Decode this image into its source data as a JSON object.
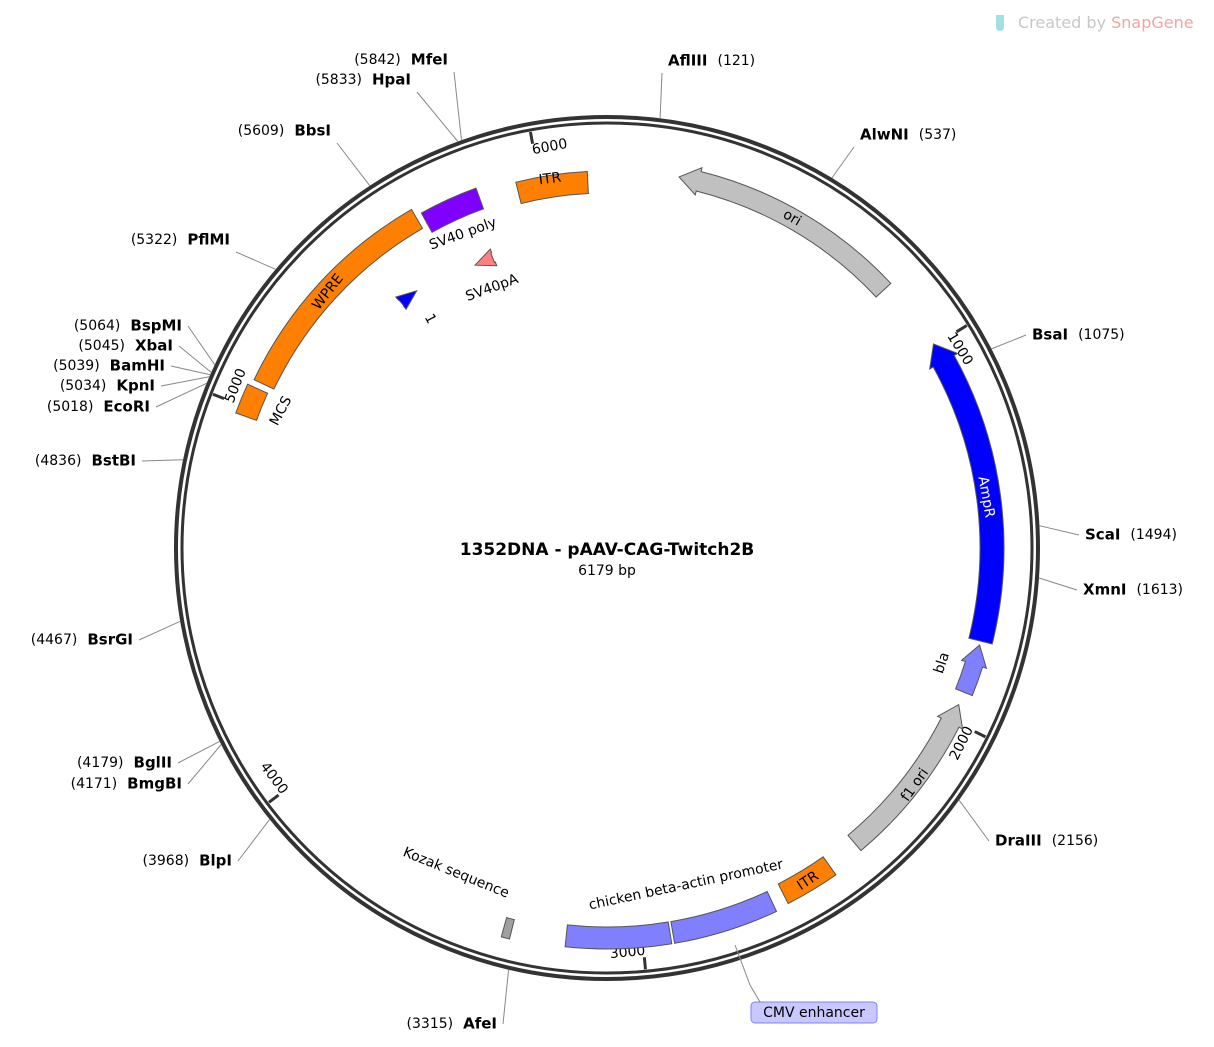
{
  "title": "1352DNA - pAAV-CAG-Twitch2B",
  "length": {
    "value": 6179,
    "label": "6179 bp"
  },
  "watermark": {
    "prefix": "Created by",
    "brand": "SnapGene"
  },
  "ticks": [
    1000,
    2000,
    3000,
    4000,
    5000,
    6000
  ],
  "restriction_sites": [
    {
      "name": "AflIII",
      "position": {
        "value": 121,
        "label": "(121)"
      }
    },
    {
      "name": "AlwNI",
      "position": {
        "value": 537,
        "label": "(537)"
      }
    },
    {
      "name": "BsaI",
      "position": {
        "value": 1075,
        "label": "(1075)"
      }
    },
    {
      "name": "ScaI",
      "position": {
        "value": 1494,
        "label": "(1494)"
      }
    },
    {
      "name": "XmnI",
      "position": {
        "value": 1613,
        "label": "(1613)"
      }
    },
    {
      "name": "DraIII",
      "position": {
        "value": 2156,
        "label": "(2156)"
      }
    },
    {
      "name": "AfeI",
      "position": {
        "value": 3315,
        "label": "(3315)"
      }
    },
    {
      "name": "BlpI",
      "position": {
        "value": 3968,
        "label": "(3968)"
      }
    },
    {
      "name": "BmgBI",
      "position": {
        "value": 4171,
        "label": "(4171)"
      }
    },
    {
      "name": "BglII",
      "position": {
        "value": 4179,
        "label": "(4179)"
      }
    },
    {
      "name": "BsrGI",
      "position": {
        "value": 4467,
        "label": "(4467)"
      }
    },
    {
      "name": "BstBI",
      "position": {
        "value": 4836,
        "label": "(4836)"
      }
    },
    {
      "name": "EcoRI",
      "position": {
        "value": 5018,
        "label": "(5018)"
      }
    },
    {
      "name": "KpnI",
      "position": {
        "value": 5034,
        "label": "(5034)"
      }
    },
    {
      "name": "BamHI",
      "position": {
        "value": 5039,
        "label": "(5039)"
      }
    },
    {
      "name": "XbaI",
      "position": {
        "value": 5045,
        "label": "(5045)"
      }
    },
    {
      "name": "BspMI",
      "position": {
        "value": 5064,
        "label": "(5064)"
      }
    },
    {
      "name": "PflMI",
      "position": {
        "value": 5322,
        "label": "(5322)"
      }
    },
    {
      "name": "BbsI",
      "position": {
        "value": 5609,
        "label": "(5609)"
      }
    },
    {
      "name": "HpaI",
      "position": {
        "value": 5833,
        "label": "(5833)"
      }
    },
    {
      "name": "MfeI",
      "position": {
        "value": 5842,
        "label": "(5842)"
      }
    }
  ],
  "features": [
    {
      "label": "ITR"
    },
    {
      "label": "SV40 poly"
    },
    {
      "label": "SV40pA"
    },
    {
      "label": "1"
    },
    {
      "label": "ori"
    },
    {
      "label": "AmpR"
    },
    {
      "label": "bla"
    },
    {
      "label": "f1 ori"
    },
    {
      "label": "ITR"
    },
    {
      "label": "chicken beta-actin promoter"
    },
    {
      "label": "CMV enhancer"
    },
    {
      "label": "Kozak sequence"
    },
    {
      "label": "MCS"
    },
    {
      "label": "WPRE"
    }
  ]
}
